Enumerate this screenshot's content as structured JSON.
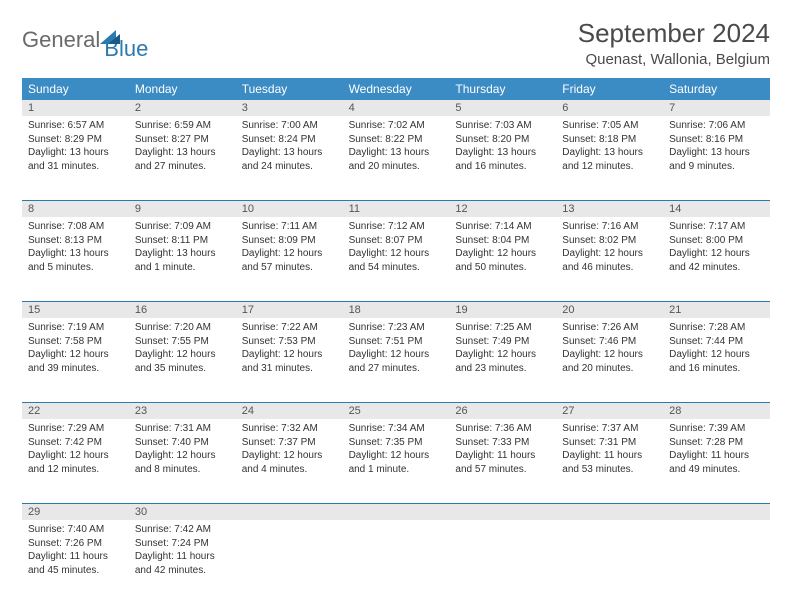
{
  "logo": {
    "text_general": "General",
    "text_blue": "Blue"
  },
  "title": {
    "month": "September 2024",
    "location": "Quenast, Wallonia, Belgium"
  },
  "colors": {
    "header_bg": "#3b8bc4",
    "day_number_bg": "#e8e8e8",
    "border": "#2a7ab0",
    "logo_gray": "#6a6a6a",
    "logo_blue": "#2a7ab0"
  },
  "day_headers": [
    "Sunday",
    "Monday",
    "Tuesday",
    "Wednesday",
    "Thursday",
    "Friday",
    "Saturday"
  ],
  "weeks": [
    {
      "numbers": [
        "1",
        "2",
        "3",
        "4",
        "5",
        "6",
        "7"
      ],
      "cells": [
        {
          "sunrise": "Sunrise: 6:57 AM",
          "sunset": "Sunset: 8:29 PM",
          "daylight": "Daylight: 13 hours and 31 minutes."
        },
        {
          "sunrise": "Sunrise: 6:59 AM",
          "sunset": "Sunset: 8:27 PM",
          "daylight": "Daylight: 13 hours and 27 minutes."
        },
        {
          "sunrise": "Sunrise: 7:00 AM",
          "sunset": "Sunset: 8:24 PM",
          "daylight": "Daylight: 13 hours and 24 minutes."
        },
        {
          "sunrise": "Sunrise: 7:02 AM",
          "sunset": "Sunset: 8:22 PM",
          "daylight": "Daylight: 13 hours and 20 minutes."
        },
        {
          "sunrise": "Sunrise: 7:03 AM",
          "sunset": "Sunset: 8:20 PM",
          "daylight": "Daylight: 13 hours and 16 minutes."
        },
        {
          "sunrise": "Sunrise: 7:05 AM",
          "sunset": "Sunset: 8:18 PM",
          "daylight": "Daylight: 13 hours and 12 minutes."
        },
        {
          "sunrise": "Sunrise: 7:06 AM",
          "sunset": "Sunset: 8:16 PM",
          "daylight": "Daylight: 13 hours and 9 minutes."
        }
      ]
    },
    {
      "numbers": [
        "8",
        "9",
        "10",
        "11",
        "12",
        "13",
        "14"
      ],
      "cells": [
        {
          "sunrise": "Sunrise: 7:08 AM",
          "sunset": "Sunset: 8:13 PM",
          "daylight": "Daylight: 13 hours and 5 minutes."
        },
        {
          "sunrise": "Sunrise: 7:09 AM",
          "sunset": "Sunset: 8:11 PM",
          "daylight": "Daylight: 13 hours and 1 minute."
        },
        {
          "sunrise": "Sunrise: 7:11 AM",
          "sunset": "Sunset: 8:09 PM",
          "daylight": "Daylight: 12 hours and 57 minutes."
        },
        {
          "sunrise": "Sunrise: 7:12 AM",
          "sunset": "Sunset: 8:07 PM",
          "daylight": "Daylight: 12 hours and 54 minutes."
        },
        {
          "sunrise": "Sunrise: 7:14 AM",
          "sunset": "Sunset: 8:04 PM",
          "daylight": "Daylight: 12 hours and 50 minutes."
        },
        {
          "sunrise": "Sunrise: 7:16 AM",
          "sunset": "Sunset: 8:02 PM",
          "daylight": "Daylight: 12 hours and 46 minutes."
        },
        {
          "sunrise": "Sunrise: 7:17 AM",
          "sunset": "Sunset: 8:00 PM",
          "daylight": "Daylight: 12 hours and 42 minutes."
        }
      ]
    },
    {
      "numbers": [
        "15",
        "16",
        "17",
        "18",
        "19",
        "20",
        "21"
      ],
      "cells": [
        {
          "sunrise": "Sunrise: 7:19 AM",
          "sunset": "Sunset: 7:58 PM",
          "daylight": "Daylight: 12 hours and 39 minutes."
        },
        {
          "sunrise": "Sunrise: 7:20 AM",
          "sunset": "Sunset: 7:55 PM",
          "daylight": "Daylight: 12 hours and 35 minutes."
        },
        {
          "sunrise": "Sunrise: 7:22 AM",
          "sunset": "Sunset: 7:53 PM",
          "daylight": "Daylight: 12 hours and 31 minutes."
        },
        {
          "sunrise": "Sunrise: 7:23 AM",
          "sunset": "Sunset: 7:51 PM",
          "daylight": "Daylight: 12 hours and 27 minutes."
        },
        {
          "sunrise": "Sunrise: 7:25 AM",
          "sunset": "Sunset: 7:49 PM",
          "daylight": "Daylight: 12 hours and 23 minutes."
        },
        {
          "sunrise": "Sunrise: 7:26 AM",
          "sunset": "Sunset: 7:46 PM",
          "daylight": "Daylight: 12 hours and 20 minutes."
        },
        {
          "sunrise": "Sunrise: 7:28 AM",
          "sunset": "Sunset: 7:44 PM",
          "daylight": "Daylight: 12 hours and 16 minutes."
        }
      ]
    },
    {
      "numbers": [
        "22",
        "23",
        "24",
        "25",
        "26",
        "27",
        "28"
      ],
      "cells": [
        {
          "sunrise": "Sunrise: 7:29 AM",
          "sunset": "Sunset: 7:42 PM",
          "daylight": "Daylight: 12 hours and 12 minutes."
        },
        {
          "sunrise": "Sunrise: 7:31 AM",
          "sunset": "Sunset: 7:40 PM",
          "daylight": "Daylight: 12 hours and 8 minutes."
        },
        {
          "sunrise": "Sunrise: 7:32 AM",
          "sunset": "Sunset: 7:37 PM",
          "daylight": "Daylight: 12 hours and 4 minutes."
        },
        {
          "sunrise": "Sunrise: 7:34 AM",
          "sunset": "Sunset: 7:35 PM",
          "daylight": "Daylight: 12 hours and 1 minute."
        },
        {
          "sunrise": "Sunrise: 7:36 AM",
          "sunset": "Sunset: 7:33 PM",
          "daylight": "Daylight: 11 hours and 57 minutes."
        },
        {
          "sunrise": "Sunrise: 7:37 AM",
          "sunset": "Sunset: 7:31 PM",
          "daylight": "Daylight: 11 hours and 53 minutes."
        },
        {
          "sunrise": "Sunrise: 7:39 AM",
          "sunset": "Sunset: 7:28 PM",
          "daylight": "Daylight: 11 hours and 49 minutes."
        }
      ]
    },
    {
      "numbers": [
        "29",
        "30",
        "",
        "",
        "",
        "",
        ""
      ],
      "cells": [
        {
          "sunrise": "Sunrise: 7:40 AM",
          "sunset": "Sunset: 7:26 PM",
          "daylight": "Daylight: 11 hours and 45 minutes."
        },
        {
          "sunrise": "Sunrise: 7:42 AM",
          "sunset": "Sunset: 7:24 PM",
          "daylight": "Daylight: 11 hours and 42 minutes."
        },
        null,
        null,
        null,
        null,
        null
      ]
    }
  ]
}
